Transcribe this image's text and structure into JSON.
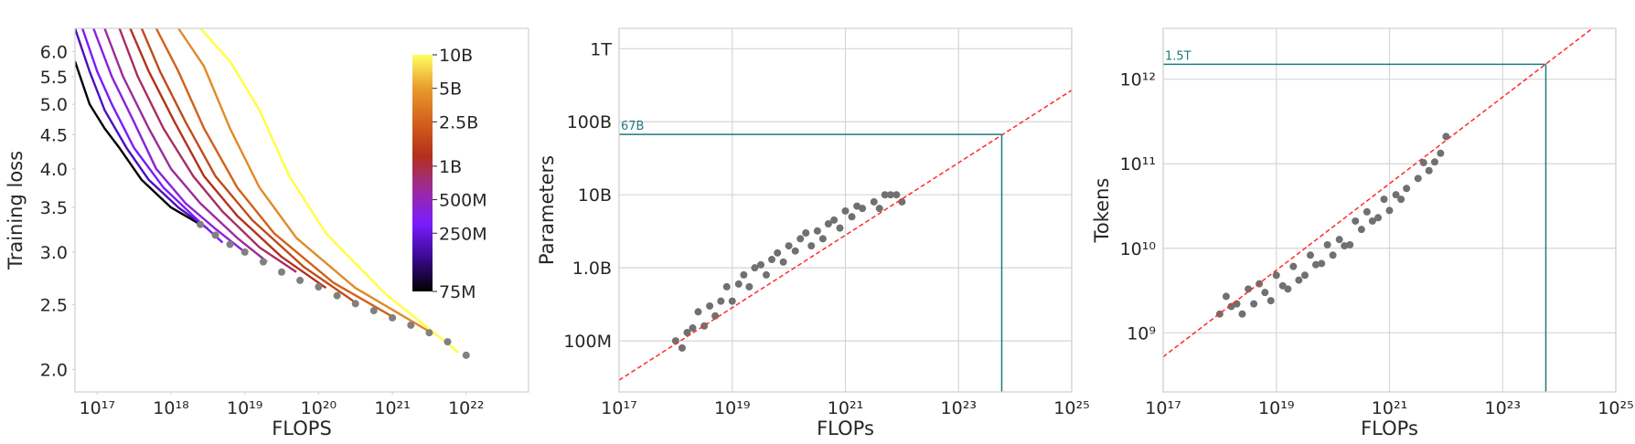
{
  "chart_data": [
    {
      "type": "line",
      "xlabel": "FLOPS",
      "ylabel": "Training loss",
      "xscale": "log",
      "yscale": "log",
      "grid": false,
      "xlim": [
        5e+16,
        7e+22
      ],
      "ylim": [
        1.85,
        6.5
      ],
      "xticks": [
        {
          "value": 1e+17,
          "label": "10¹⁷"
        },
        {
          "value": 1e+18,
          "label": "10¹⁸"
        },
        {
          "value": 1e+19,
          "label": "10¹⁹"
        },
        {
          "value": 1e+20,
          "label": "10²⁰"
        },
        {
          "value": 1e+21,
          "label": "10²¹"
        },
        {
          "value": 1e+22,
          "label": "10²²"
        }
      ],
      "yticks": [
        {
          "value": 2,
          "label": "2.0"
        },
        2.5,
        {
          "value": 3,
          "label": "3.0"
        },
        3.5,
        {
          "value": 4,
          "label": "4.0"
        },
        4.5,
        {
          "value": 5,
          "label": "5.0"
        },
        5.5,
        {
          "value": 6,
          "label": "6.0"
        }
      ],
      "series": [
        {
          "color": "#000000",
          "x": [
            5e+16,
            7.9e+16,
            1.26e+17,
            2e+17,
            4e+17,
            1e+18,
            2.5e+18
          ],
          "values": [
            5.8,
            5.0,
            4.6,
            4.3,
            3.85,
            3.5,
            3.3
          ]
        },
        {
          "color": "#4a10c0",
          "x": [
            5e+16,
            7.9e+16,
            1.26e+17,
            2.5e+17,
            5e+17,
            1.26e+18,
            3.16e+18
          ],
          "values": [
            6.5,
            5.6,
            4.9,
            4.3,
            3.85,
            3.5,
            3.25
          ]
        },
        {
          "color": "#7a1cff",
          "x": [
            6.3e+16,
            1e+17,
            1.58e+17,
            3.16e+17,
            7.9e+17,
            2e+18,
            5e+18
          ],
          "values": [
            6.5,
            5.6,
            5.0,
            4.3,
            3.75,
            3.4,
            3.1
          ]
        },
        {
          "color": "#8a22d8",
          "x": [
            8.9e+16,
            1.58e+17,
            3.16e+17,
            6.3e+17,
            1.58e+18,
            4e+18,
            1e+19
          ],
          "values": [
            6.5,
            5.5,
            4.7,
            4.0,
            3.55,
            3.25,
            3.0
          ]
        },
        {
          "color": "#9c2a9e",
          "x": [
            1.26e+17,
            2.24e+17,
            5e+17,
            1e+18,
            2.5e+18,
            7.9e+18,
            2e+19
          ],
          "values": [
            6.5,
            5.5,
            4.6,
            4.0,
            3.55,
            3.15,
            2.9
          ]
        },
        {
          "color": "#a82d60",
          "x": [
            2e+17,
            3.55e+17,
            7.9e+17,
            2e+18,
            5e+18,
            1.58e+19,
            5e+19
          ],
          "values": [
            6.5,
            5.5,
            4.6,
            3.9,
            3.45,
            3.05,
            2.8
          ]
        },
        {
          "color": "#b3301c",
          "x": [
            2.8e+17,
            5e+17,
            1.12e+18,
            2.8e+18,
            7.9e+18,
            3.16e+19,
            1.26e+20
          ],
          "values": [
            6.5,
            5.6,
            4.7,
            3.9,
            3.4,
            2.95,
            2.65
          ]
        },
        {
          "color": "#c04a1c",
          "x": [
            4e+17,
            7.1e+17,
            1.58e+18,
            4e+18,
            1.26e+19,
            6.3e+19,
            3.16e+20
          ],
          "values": [
            6.5,
            5.6,
            4.7,
            3.9,
            3.35,
            2.85,
            2.52
          ]
        },
        {
          "color": "#d2601c",
          "x": [
            6.3e+17,
            1.26e+18,
            2.8e+18,
            7.9e+18,
            2.5e+19,
            1.58e+20,
            1e+21
          ],
          "values": [
            6.5,
            5.6,
            4.6,
            3.75,
            3.2,
            2.7,
            2.4
          ]
        },
        {
          "color": "#e08a28",
          "x": [
            1.26e+18,
            2.8e+18,
            6.3e+18,
            1.58e+19,
            5e+19,
            3.16e+20,
            3.16e+21
          ],
          "values": [
            6.5,
            5.7,
            4.6,
            3.75,
            3.15,
            2.65,
            2.28
          ]
        },
        {
          "color": "#ffff40",
          "x": [
            2.5e+18,
            6.3e+18,
            1.58e+19,
            4e+19,
            1.26e+20,
            7.9e+20,
            7.9e+21
          ],
          "values": [
            6.5,
            5.8,
            4.9,
            3.9,
            3.2,
            2.6,
            2.12
          ]
        },
        {
          "color": "#808080",
          "mode": "markers",
          "x": [
            2.5e+18,
            4e+18,
            6.3e+18,
            1e+19,
            1.78e+19,
            3.16e+19,
            5.6e+19,
            1e+20,
            1.78e+20,
            3.16e+20,
            5.6e+20,
            1e+21,
            1.78e+21,
            3.16e+21,
            5.6e+21,
            1e+22
          ],
          "values": [
            3.3,
            3.18,
            3.08,
            3.0,
            2.9,
            2.8,
            2.72,
            2.66,
            2.58,
            2.51,
            2.45,
            2.39,
            2.33,
            2.27,
            2.2,
            2.1
          ]
        }
      ],
      "colorbar": {
        "lim": [
          75000000.0,
          10000000000.0
        ],
        "colors": [
          "#000000",
          "#3a0a8f",
          "#7a1cff",
          "#9c2a9e",
          "#b3301c",
          "#d2601c",
          "#e89a2e",
          "#ffff60"
        ],
        "ticks": [
          {
            "value": 75000000.0,
            "label": "75M"
          },
          {
            "value": 250000000.0,
            "label": "250M"
          },
          {
            "value": 500000000.0,
            "label": "500M"
          },
          {
            "value": 1000000000.0,
            "label": "1B"
          },
          {
            "value": 2500000000.0,
            "label": "2.5B"
          },
          {
            "value": 5000000000.0,
            "label": "5B"
          },
          {
            "value": 10000000000.0,
            "label": "10B"
          }
        ]
      }
    },
    {
      "type": "scatter",
      "xlabel": "FLOPs",
      "ylabel": "Parameters",
      "xscale": "log",
      "yscale": "log",
      "grid": true,
      "xlim": [
        1e+17,
        1e+25
      ],
      "ylim": [
        20000000.0,
        1900000000000.0
      ],
      "xticks": [
        {
          "value": 1e+17,
          "label": "10¹⁷"
        },
        {
          "value": 1e+19,
          "label": "10¹⁹"
        },
        {
          "value": 1e+21,
          "label": "10²¹"
        },
        {
          "value": 1e+23,
          "label": "10²³"
        },
        {
          "value": 1e+25,
          "label": "10²⁵"
        }
      ],
      "yticks": [
        {
          "value": 100000000.0,
          "label": "100M"
        },
        {
          "value": 1000000000.0,
          "label": "1.0B"
        },
        {
          "value": 10000000000.0,
          "label": "10B"
        },
        {
          "value": 100000000000.0,
          "label": "100B"
        },
        {
          "value": 1000000000000.0,
          "label": "1T"
        }
      ],
      "series": [
        {
          "color": "#707070",
          "mode": "markers",
          "x": [
            1e+18,
            1.3e+18,
            1.6e+18,
            2e+18,
            2.5e+18,
            3.2e+18,
            4e+18,
            5e+18,
            6.3e+18,
            8e+18,
            1e+19,
            1.3e+19,
            1.6e+19,
            2e+19,
            2.5e+19,
            3.2e+19,
            4e+19,
            5e+19,
            6.3e+19,
            8e+19,
            1e+20,
            1.3e+20,
            1.6e+20,
            2e+20,
            2.5e+20,
            3.2e+20,
            4e+20,
            5e+20,
            6.3e+20,
            8e+20,
            1e+21,
            1.3e+21,
            1.6e+21,
            2e+21,
            3.2e+21,
            4e+21,
            5e+21,
            6.3e+21,
            8e+21,
            1e+22
          ],
          "values": [
            100000000.0,
            80000000.0,
            130000000.0,
            150000000.0,
            250000000.0,
            160000000.0,
            300000000.0,
            220000000.0,
            350000000.0,
            550000000.0,
            350000000.0,
            600000000.0,
            800000000.0,
            550000000.0,
            1000000000.0,
            1100000000.0,
            800000000.0,
            1300000000.0,
            1600000000.0,
            1200000000.0,
            2000000000.0,
            1700000000.0,
            2500000000.0,
            3000000000.0,
            2000000000.0,
            3200000000.0,
            2500000000.0,
            4000000000.0,
            4500000000.0,
            3500000000.0,
            6000000000.0,
            5000000000.0,
            7000000000.0,
            6500000000.0,
            8000000000.0,
            6500000000.0,
            10000000000.0,
            10000000000.0,
            10000000000.0,
            8000000000.0
          ]
        },
        {
          "color": "#ff2a2a",
          "dashed": true,
          "x": [
            1e+17,
            1e+25
          ],
          "values": [
            29000000.0,
            270000000000.0
          ]
        }
      ],
      "annotations": [
        {
          "text": "67B",
          "x": 5.8e+23,
          "y": 67000000000.0,
          "color": "#1f7a80"
        }
      ]
    },
    {
      "type": "scatter",
      "xlabel": "FLOPs",
      "ylabel": "Tokens",
      "xscale": "log",
      "yscale": "log",
      "grid": true,
      "xlim": [
        1e+17,
        1e+25
      ],
      "ylim": [
        200000000.0,
        4000000000000.0
      ],
      "xticks": [
        {
          "value": 1e+17,
          "label": "10¹⁷"
        },
        {
          "value": 1e+19,
          "label": "10¹⁹"
        },
        {
          "value": 1e+21,
          "label": "10²¹"
        },
        {
          "value": 1e+23,
          "label": "10²³"
        },
        {
          "value": 1e+25,
          "label": "10²⁵"
        }
      ],
      "yticks": [
        {
          "value": 1000000000.0,
          "label": "10⁹"
        },
        {
          "value": 10000000000.0,
          "label": "10¹⁰"
        },
        {
          "value": 100000000000.0,
          "label": "10¹¹"
        },
        {
          "value": 1000000000000.0,
          "label": "10¹²"
        }
      ],
      "series": [
        {
          "color": "#707070",
          "mode": "markers",
          "x": [
            1e+18,
            1.3e+18,
            1.6e+18,
            2e+18,
            2.5e+18,
            3.2e+18,
            4e+18,
            5e+18,
            6.3e+18,
            8e+18,
            1e+19,
            1.3e+19,
            1.6e+19,
            2e+19,
            2.5e+19,
            3.2e+19,
            4e+19,
            5e+19,
            6.3e+19,
            8e+19,
            1e+20,
            1.3e+20,
            1.6e+20,
            2e+20,
            2.5e+20,
            3.2e+20,
            4e+20,
            5e+20,
            6.3e+20,
            8e+20,
            1e+21,
            1.3e+21,
            1.6e+21,
            2e+21,
            3.2e+21,
            4e+21,
            5e+21,
            6.3e+21,
            8e+21,
            1e+22
          ],
          "values": [
            1670000000.0,
            2700000000.0,
            2050000000.0,
            2200000000.0,
            1670000000.0,
            3300000000.0,
            2200000000.0,
            3800000000.0,
            3000000000.0,
            2400000000.0,
            4800000000.0,
            3600000000.0,
            3300000000.0,
            6100000000.0,
            4200000000.0,
            4800000000.0,
            8300000000.0,
            6400000000.0,
            6600000000.0,
            11000000000.0,
            8300000000.0,
            12700000000.0,
            10700000000.0,
            11000000000.0,
            21000000000.0,
            16700000000.0,
            27000000000.0,
            21000000000.0,
            23000000000.0,
            38000000000.0,
            28000000000.0,
            43000000000.0,
            38000000000.0,
            51000000000.0,
            67000000000.0,
            103000000000.0,
            83000000000.0,
            105000000000.0,
            133000000000.0,
            210000000000.0
          ]
        },
        {
          "color": "#ff2a2a",
          "dashed": true,
          "x": [
            1e+17,
            1e+25
          ],
          "values": [
            520000000.0,
            6500000000000.0
          ]
        }
      ],
      "annotations": [
        {
          "text": "1.5T",
          "x": 5.8e+23,
          "y": 1500000000000.0,
          "color": "#1f7a80"
        }
      ]
    }
  ]
}
